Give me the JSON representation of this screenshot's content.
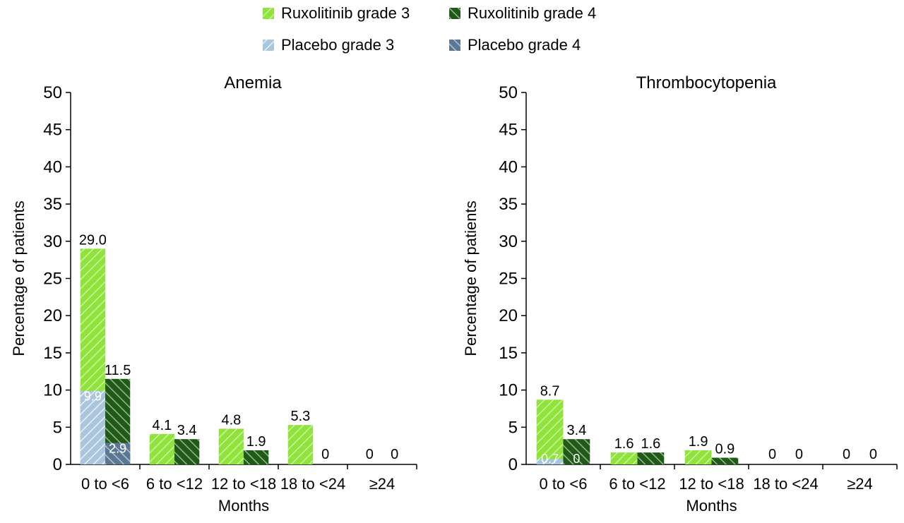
{
  "colors": {
    "rux_g3": "#8fe33a",
    "rux_g4": "#1f5a16",
    "pla_g3": "#a9c6dc",
    "pla_g4": "#5a7894",
    "axis": "#000000"
  },
  "legend": {
    "items": [
      {
        "key": "rux_g3",
        "label": "Ruxolitinib grade 3"
      },
      {
        "key": "rux_g4",
        "label": "Ruxolitinib grade 4"
      },
      {
        "key": "pla_g3",
        "label": "Placebo grade 3"
      },
      {
        "key": "pla_g4",
        "label": "Placebo grade 4"
      }
    ]
  },
  "chart_data": [
    {
      "type": "bar",
      "title": "Anemia",
      "xlabel": "Months",
      "ylabel": "Percentage of patients",
      "ylim": [
        0,
        50
      ],
      "yticks": [
        "0",
        "5",
        "10",
        "15",
        "20",
        "25",
        "30",
        "35",
        "40",
        "45",
        "50"
      ],
      "categories": [
        "0 to <6",
        "6 to <12",
        "12 to <18",
        "18 to <24",
        "≥24"
      ],
      "series": [
        {
          "name": "Ruxolitinib grade 3",
          "key": "rux_g3",
          "values": [
            29.0,
            4.1,
            4.8,
            5.3,
            0
          ],
          "labels": [
            "29.0",
            "4.1",
            "4.8",
            "5.3",
            "0"
          ]
        },
        {
          "name": "Ruxolitinib grade 4",
          "key": "rux_g4",
          "values": [
            11.5,
            3.4,
            1.9,
            0,
            0
          ],
          "labels": [
            "11.5",
            "3.4",
            "1.9",
            "0",
            "0"
          ]
        },
        {
          "name": "Placebo grade 3",
          "key": "pla_g3",
          "values": [
            9.9,
            0,
            0,
            0,
            0
          ],
          "labels": [
            "9.9",
            "",
            "",
            "",
            ""
          ]
        },
        {
          "name": "Placebo grade 4",
          "key": "pla_g4",
          "values": [
            2.9,
            0,
            0,
            0,
            0
          ],
          "labels": [
            "2.9",
            "",
            "",
            "",
            ""
          ]
        }
      ]
    },
    {
      "type": "bar",
      "title": "Thrombocytopenia",
      "xlabel": "Months",
      "ylabel": "Percentage of patients",
      "ylim": [
        0,
        50
      ],
      "yticks": [
        "0",
        "5",
        "10",
        "15",
        "20",
        "25",
        "30",
        "35",
        "40",
        "45",
        "50"
      ],
      "categories": [
        "0 to <6",
        "6 to <12",
        "12 to <18",
        "18 to <24",
        "≥24"
      ],
      "series": [
        {
          "name": "Ruxolitinib grade 3",
          "key": "rux_g3",
          "values": [
            8.7,
            1.6,
            1.9,
            0,
            0
          ],
          "labels": [
            "8.7",
            "1.6",
            "1.9",
            "0",
            "0"
          ]
        },
        {
          "name": "Ruxolitinib grade 4",
          "key": "rux_g4",
          "values": [
            3.4,
            1.6,
            0.9,
            0,
            0
          ],
          "labels": [
            "3.4",
            "1.6",
            "0.9",
            "0",
            "0"
          ]
        },
        {
          "name": "Placebo grade 3",
          "key": "pla_g3",
          "values": [
            0.7,
            0,
            0,
            0,
            0
          ],
          "labels": [
            "0.7",
            "",
            "",
            "",
            ""
          ]
        },
        {
          "name": "Placebo grade 4",
          "key": "pla_g4",
          "values": [
            0,
            0,
            0,
            0,
            0
          ],
          "labels": [
            "0",
            "",
            "",
            "",
            ""
          ]
        }
      ]
    }
  ]
}
